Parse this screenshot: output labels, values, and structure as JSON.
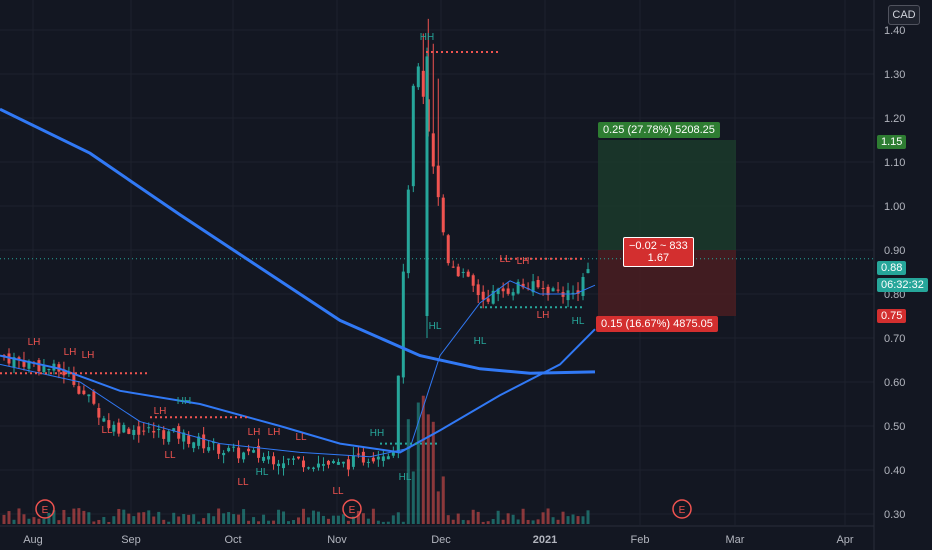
{
  "currency": "CAD",
  "colors": {
    "background": "#131722",
    "up": "#26a69a",
    "down": "#ef5350",
    "ma": "#2962ff",
    "ma_light": "#3179f5",
    "target_fill": "#1b3a2a",
    "stop_fill": "#4a1d21",
    "target_label": "#2e7d32",
    "stop_label": "#d32f2f"
  },
  "price_labels": {
    "target": "1.15",
    "last": "0.88",
    "countdown": "06:32:32",
    "stop": "0.75"
  },
  "position_tool": {
    "target_text": "0.25 (27.78%) 5208.25",
    "center_line1": "−0.02 ~ 833",
    "center_line2": "1.67",
    "stop_text": "0.15 (16.67%) 4875.05"
  },
  "earnings_marker": "E",
  "chart_data": {
    "type": "candlestick",
    "title": "",
    "y_axis": {
      "ticks": [
        "0.30",
        "0.40",
        "0.50",
        "0.60",
        "0.70",
        "0.80",
        "0.90",
        "1.00",
        "1.10",
        "1.20",
        "1.30",
        "1.40"
      ],
      "range": [
        0.28,
        1.44
      ],
      "position": "right"
    },
    "x_axis": {
      "ticks": [
        "Aug",
        "Sep",
        "Oct",
        "Nov",
        "Dec",
        "2021",
        "Feb",
        "Mar",
        "Apr"
      ]
    },
    "grid": true,
    "approx_close_path": [
      {
        "date": "2020-08-01",
        "close": 0.66
      },
      {
        "date": "2020-08-20",
        "close": 0.62
      },
      {
        "date": "2020-09-01",
        "close": 0.5
      },
      {
        "date": "2020-09-20",
        "close": 0.48
      },
      {
        "date": "2020-10-05",
        "close": 0.44
      },
      {
        "date": "2020-10-25",
        "close": 0.42
      },
      {
        "date": "2020-11-05",
        "close": 0.41
      },
      {
        "date": "2020-11-20",
        "close": 0.45
      },
      {
        "date": "2020-11-26",
        "close": 1.35
      },
      {
        "date": "2020-12-05",
        "close": 0.88
      },
      {
        "date": "2020-12-15",
        "close": 0.79
      },
      {
        "date": "2020-12-25",
        "close": 0.82
      },
      {
        "date": "2021-01-10",
        "close": 0.8
      },
      {
        "date": "2021-01-15",
        "close": 0.88
      }
    ],
    "annotations": [
      "LH",
      "LH",
      "LH",
      "LL",
      "LH",
      "HH",
      "LL",
      "LH",
      "LH",
      "LL",
      "HL",
      "LL",
      "HH",
      "HL",
      "HL",
      "HH",
      "HL",
      "LL",
      "LH",
      "LH",
      "HL",
      "LL"
    ]
  }
}
